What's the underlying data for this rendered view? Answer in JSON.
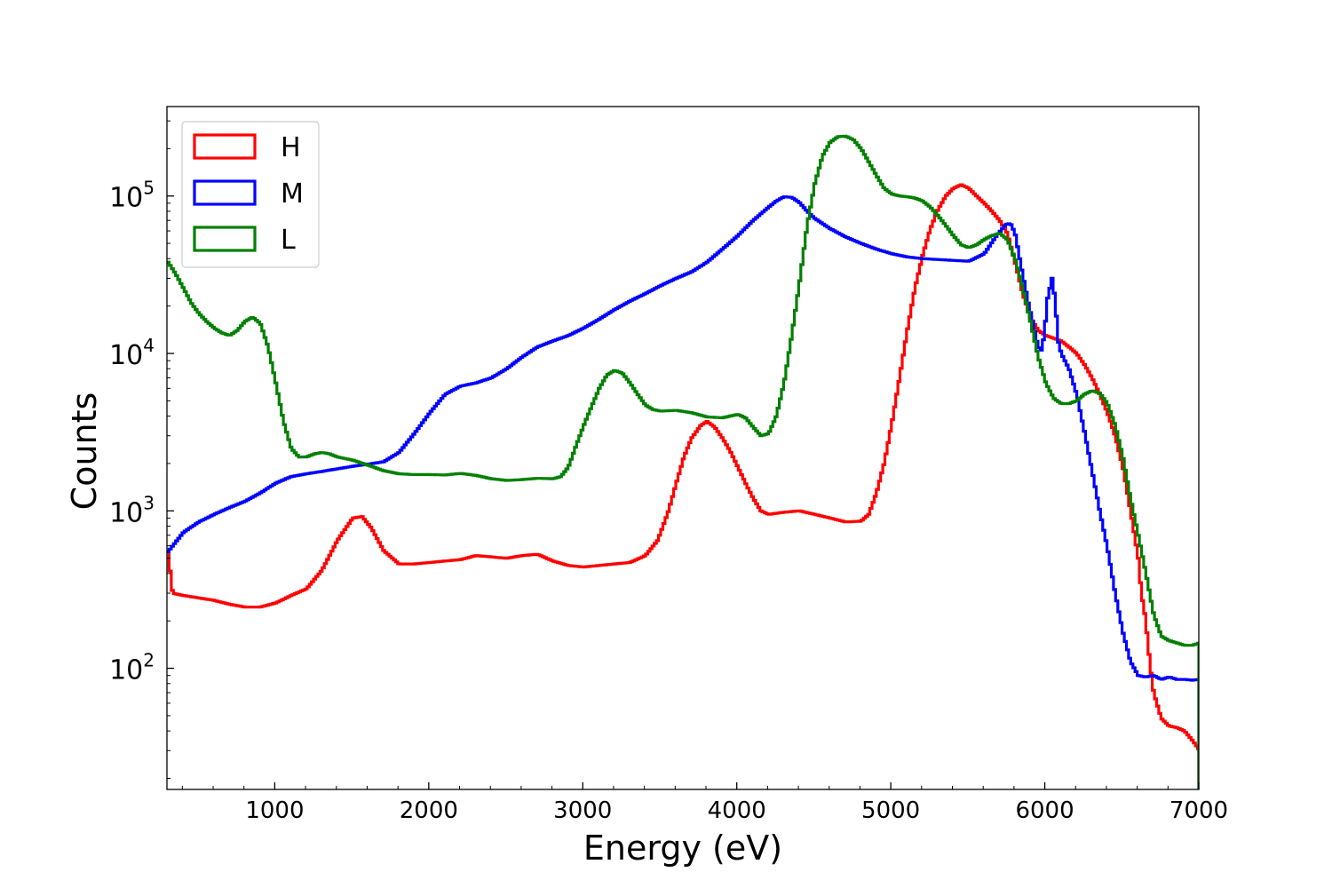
{
  "chart_data": {
    "type": "line",
    "drawstyle": "steps",
    "title": "",
    "xlabel": "Energy (eV)",
    "ylabel": "Counts",
    "xscale": "linear",
    "yscale": "log",
    "xlim": [
      300,
      7000
    ],
    "ylim": [
      17,
      370000
    ],
    "xticks": [
      1000,
      2000,
      3000,
      4000,
      5000,
      6000,
      7000
    ],
    "yticks": [
      {
        "value": 100,
        "base": "10",
        "exp": "2"
      },
      {
        "value": 1000,
        "base": "10",
        "exp": "3"
      },
      {
        "value": 10000,
        "base": "10",
        "exp": "4"
      },
      {
        "value": 100000,
        "base": "10",
        "exp": "5"
      }
    ],
    "legend_position": "top-left",
    "series": [
      {
        "name": "H",
        "color": "#ff0000",
        "points": [
          [
            300,
            550
          ],
          [
            330,
            300
          ],
          [
            400,
            290
          ],
          [
            500,
            280
          ],
          [
            600,
            270
          ],
          [
            700,
            255
          ],
          [
            800,
            245
          ],
          [
            900,
            245
          ],
          [
            1000,
            260
          ],
          [
            1100,
            290
          ],
          [
            1200,
            320
          ],
          [
            1300,
            420
          ],
          [
            1400,
            650
          ],
          [
            1500,
            900
          ],
          [
            1560,
            920
          ],
          [
            1620,
            780
          ],
          [
            1700,
            560
          ],
          [
            1800,
            460
          ],
          [
            1900,
            460
          ],
          [
            2000,
            470
          ],
          [
            2100,
            480
          ],
          [
            2200,
            490
          ],
          [
            2300,
            520
          ],
          [
            2400,
            510
          ],
          [
            2500,
            500
          ],
          [
            2600,
            520
          ],
          [
            2700,
            530
          ],
          [
            2800,
            480
          ],
          [
            2900,
            450
          ],
          [
            3000,
            440
          ],
          [
            3100,
            450
          ],
          [
            3200,
            460
          ],
          [
            3300,
            470
          ],
          [
            3400,
            520
          ],
          [
            3480,
            650
          ],
          [
            3550,
            1000
          ],
          [
            3600,
            1500
          ],
          [
            3650,
            2200
          ],
          [
            3700,
            2900
          ],
          [
            3760,
            3500
          ],
          [
            3800,
            3700
          ],
          [
            3850,
            3400
          ],
          [
            3900,
            2900
          ],
          [
            3950,
            2400
          ],
          [
            4000,
            1900
          ],
          [
            4050,
            1500
          ],
          [
            4100,
            1200
          ],
          [
            4150,
            1000
          ],
          [
            4200,
            950
          ],
          [
            4300,
            980
          ],
          [
            4400,
            1000
          ],
          [
            4500,
            950
          ],
          [
            4600,
            900
          ],
          [
            4700,
            850
          ],
          [
            4800,
            860
          ],
          [
            4850,
            950
          ],
          [
            4900,
            1300
          ],
          [
            4950,
            2000
          ],
          [
            5000,
            3600
          ],
          [
            5050,
            7000
          ],
          [
            5100,
            14000
          ],
          [
            5150,
            26000
          ],
          [
            5200,
            42000
          ],
          [
            5250,
            62000
          ],
          [
            5300,
            82000
          ],
          [
            5350,
            100000
          ],
          [
            5400,
            112000
          ],
          [
            5450,
            118000
          ],
          [
            5500,
            112000
          ],
          [
            5550,
            100000
          ],
          [
            5600,
            90000
          ],
          [
            5650,
            80000
          ],
          [
            5700,
            70000
          ],
          [
            5750,
            58000
          ],
          [
            5800,
            38000
          ],
          [
            5850,
            24000
          ],
          [
            5900,
            17000
          ],
          [
            5950,
            14000
          ],
          [
            6000,
            13000
          ],
          [
            6050,
            12500
          ],
          [
            6100,
            12000
          ],
          [
            6150,
            11000
          ],
          [
            6200,
            10000
          ],
          [
            6250,
            8500
          ],
          [
            6300,
            7000
          ],
          [
            6350,
            5500
          ],
          [
            6400,
            4200
          ],
          [
            6450,
            3000
          ],
          [
            6500,
            1900
          ],
          [
            6550,
            1000
          ],
          [
            6600,
            500
          ],
          [
            6620,
            300
          ],
          [
            6650,
            200
          ],
          [
            6660,
            150
          ],
          [
            6680,
            100
          ],
          [
            6700,
            70
          ],
          [
            6750,
            48
          ],
          [
            6800,
            43
          ],
          [
            6850,
            42
          ],
          [
            6900,
            40
          ],
          [
            6950,
            35
          ],
          [
            7000,
            30
          ]
        ]
      },
      {
        "name": "M",
        "color": "#0000ff",
        "points": [
          [
            300,
            550
          ],
          [
            400,
            730
          ],
          [
            500,
            850
          ],
          [
            600,
            950
          ],
          [
            700,
            1050
          ],
          [
            800,
            1150
          ],
          [
            900,
            1300
          ],
          [
            1000,
            1500
          ],
          [
            1100,
            1650
          ],
          [
            1200,
            1720
          ],
          [
            1300,
            1780
          ],
          [
            1400,
            1850
          ],
          [
            1500,
            1920
          ],
          [
            1600,
            1980
          ],
          [
            1700,
            2050
          ],
          [
            1800,
            2350
          ],
          [
            1900,
            3100
          ],
          [
            2000,
            4200
          ],
          [
            2100,
            5500
          ],
          [
            2200,
            6200
          ],
          [
            2300,
            6500
          ],
          [
            2400,
            7000
          ],
          [
            2500,
            8000
          ],
          [
            2600,
            9500
          ],
          [
            2700,
            11000
          ],
          [
            2800,
            12000
          ],
          [
            2900,
            13000
          ],
          [
            3000,
            14500
          ],
          [
            3100,
            16500
          ],
          [
            3200,
            19000
          ],
          [
            3300,
            21500
          ],
          [
            3400,
            24000
          ],
          [
            3500,
            27000
          ],
          [
            3600,
            30000
          ],
          [
            3700,
            33000
          ],
          [
            3800,
            38000
          ],
          [
            3900,
            46000
          ],
          [
            4000,
            56000
          ],
          [
            4100,
            70000
          ],
          [
            4200,
            85000
          ],
          [
            4250,
            93000
          ],
          [
            4300,
            99000
          ],
          [
            4350,
            98000
          ],
          [
            4400,
            91000
          ],
          [
            4450,
            80000
          ],
          [
            4500,
            72000
          ],
          [
            4600,
            62000
          ],
          [
            4700,
            55000
          ],
          [
            4800,
            50000
          ],
          [
            4900,
            46000
          ],
          [
            5000,
            43000
          ],
          [
            5100,
            41000
          ],
          [
            5200,
            40000
          ],
          [
            5300,
            39500
          ],
          [
            5400,
            39000
          ],
          [
            5500,
            38500
          ],
          [
            5600,
            43000
          ],
          [
            5680,
            56000
          ],
          [
            5740,
            66000
          ],
          [
            5770,
            67000
          ],
          [
            5800,
            58000
          ],
          [
            5830,
            40000
          ],
          [
            5860,
            28000
          ],
          [
            5890,
            20000
          ],
          [
            5920,
            15000
          ],
          [
            5950,
            11000
          ],
          [
            5970,
            10500
          ],
          [
            5990,
            13000
          ],
          [
            6010,
            22000
          ],
          [
            6040,
            30000
          ],
          [
            6060,
            22000
          ],
          [
            6080,
            12000
          ],
          [
            6100,
            10000
          ],
          [
            6150,
            8000
          ],
          [
            6200,
            5500
          ],
          [
            6250,
            3200
          ],
          [
            6300,
            1800
          ],
          [
            6350,
            1000
          ],
          [
            6400,
            580
          ],
          [
            6450,
            300
          ],
          [
            6500,
            170
          ],
          [
            6550,
            110
          ],
          [
            6600,
            90
          ],
          [
            6650,
            88
          ],
          [
            6700,
            90
          ],
          [
            6750,
            85
          ],
          [
            6800,
            88
          ],
          [
            6850,
            85
          ],
          [
            6900,
            85
          ],
          [
            6950,
            84
          ],
          [
            7000,
            85
          ]
        ]
      },
      {
        "name": "L",
        "color": "#008000",
        "points": [
          [
            300,
            38000
          ],
          [
            350,
            32000
          ],
          [
            400,
            26000
          ],
          [
            450,
            21000
          ],
          [
            500,
            18000
          ],
          [
            550,
            16000
          ],
          [
            600,
            14500
          ],
          [
            650,
            13500
          ],
          [
            700,
            13000
          ],
          [
            750,
            14000
          ],
          [
            800,
            16000
          ],
          [
            850,
            17000
          ],
          [
            900,
            15500
          ],
          [
            950,
            11000
          ],
          [
            1000,
            6500
          ],
          [
            1050,
            3700
          ],
          [
            1100,
            2500
          ],
          [
            1150,
            2200
          ],
          [
            1200,
            2200
          ],
          [
            1250,
            2300
          ],
          [
            1300,
            2350
          ],
          [
            1350,
            2300
          ],
          [
            1400,
            2200
          ],
          [
            1500,
            2100
          ],
          [
            1600,
            1950
          ],
          [
            1700,
            1800
          ],
          [
            1800,
            1720
          ],
          [
            1900,
            1700
          ],
          [
            2000,
            1700
          ],
          [
            2100,
            1690
          ],
          [
            2200,
            1730
          ],
          [
            2300,
            1680
          ],
          [
            2400,
            1600
          ],
          [
            2500,
            1560
          ],
          [
            2600,
            1580
          ],
          [
            2700,
            1610
          ],
          [
            2800,
            1600
          ],
          [
            2850,
            1650
          ],
          [
            2900,
            1900
          ],
          [
            2950,
            2600
          ],
          [
            3000,
            3500
          ],
          [
            3050,
            4600
          ],
          [
            3100,
            6000
          ],
          [
            3150,
            7300
          ],
          [
            3200,
            7800
          ],
          [
            3250,
            7500
          ],
          [
            3300,
            6500
          ],
          [
            3350,
            5500
          ],
          [
            3400,
            4700
          ],
          [
            3450,
            4400
          ],
          [
            3500,
            4300
          ],
          [
            3600,
            4350
          ],
          [
            3700,
            4200
          ],
          [
            3800,
            3950
          ],
          [
            3900,
            3900
          ],
          [
            4000,
            4100
          ],
          [
            4050,
            3900
          ],
          [
            4100,
            3400
          ],
          [
            4150,
            3000
          ],
          [
            4200,
            3100
          ],
          [
            4250,
            4000
          ],
          [
            4300,
            6500
          ],
          [
            4350,
            13000
          ],
          [
            4400,
            28000
          ],
          [
            4450,
            65000
          ],
          [
            4500,
            120000
          ],
          [
            4550,
            180000
          ],
          [
            4600,
            220000
          ],
          [
            4650,
            238000
          ],
          [
            4700,
            240000
          ],
          [
            4750,
            228000
          ],
          [
            4800,
            200000
          ],
          [
            4850,
            165000
          ],
          [
            4900,
            135000
          ],
          [
            4950,
            112000
          ],
          [
            5000,
            103000
          ],
          [
            5050,
            100000
          ],
          [
            5100,
            99000
          ],
          [
            5150,
            97000
          ],
          [
            5200,
            93000
          ],
          [
            5250,
            85000
          ],
          [
            5300,
            75000
          ],
          [
            5350,
            65000
          ],
          [
            5400,
            56000
          ],
          [
            5450,
            49000
          ],
          [
            5500,
            47000
          ],
          [
            5550,
            49000
          ],
          [
            5600,
            53000
          ],
          [
            5650,
            56000
          ],
          [
            5700,
            58000
          ],
          [
            5750,
            53000
          ],
          [
            5800,
            40000
          ],
          [
            5850,
            26000
          ],
          [
            5900,
            16000
          ],
          [
            5950,
            9500
          ],
          [
            6000,
            6500
          ],
          [
            6050,
            5200
          ],
          [
            6100,
            4800
          ],
          [
            6150,
            4800
          ],
          [
            6200,
            5000
          ],
          [
            6250,
            5500
          ],
          [
            6300,
            5800
          ],
          [
            6350,
            5600
          ],
          [
            6400,
            4800
          ],
          [
            6450,
            3500
          ],
          [
            6500,
            2200
          ],
          [
            6550,
            1200
          ],
          [
            6600,
            700
          ],
          [
            6650,
            400
          ],
          [
            6700,
            220
          ],
          [
            6750,
            160
          ],
          [
            6800,
            150
          ],
          [
            6850,
            145
          ],
          [
            6900,
            140
          ],
          [
            6950,
            140
          ],
          [
            7000,
            145
          ]
        ]
      }
    ]
  }
}
